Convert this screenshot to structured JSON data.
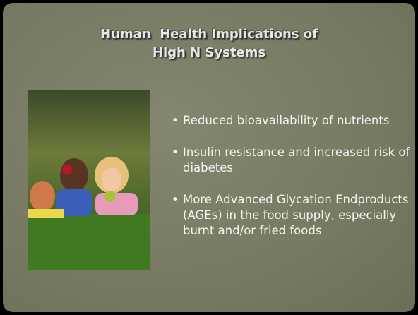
{
  "slide": {
    "title": [
      "Human  Health Implications of",
      "High N Systems"
    ],
    "bullets": [
      "Reduced bioavailability of nutrients",
      "Insulin resistance and increased risk of diabetes",
      "More Advanced Glycation Endproducts (AGEs) in the food supply, especially burnt and/or fried foods"
    ]
  }
}
